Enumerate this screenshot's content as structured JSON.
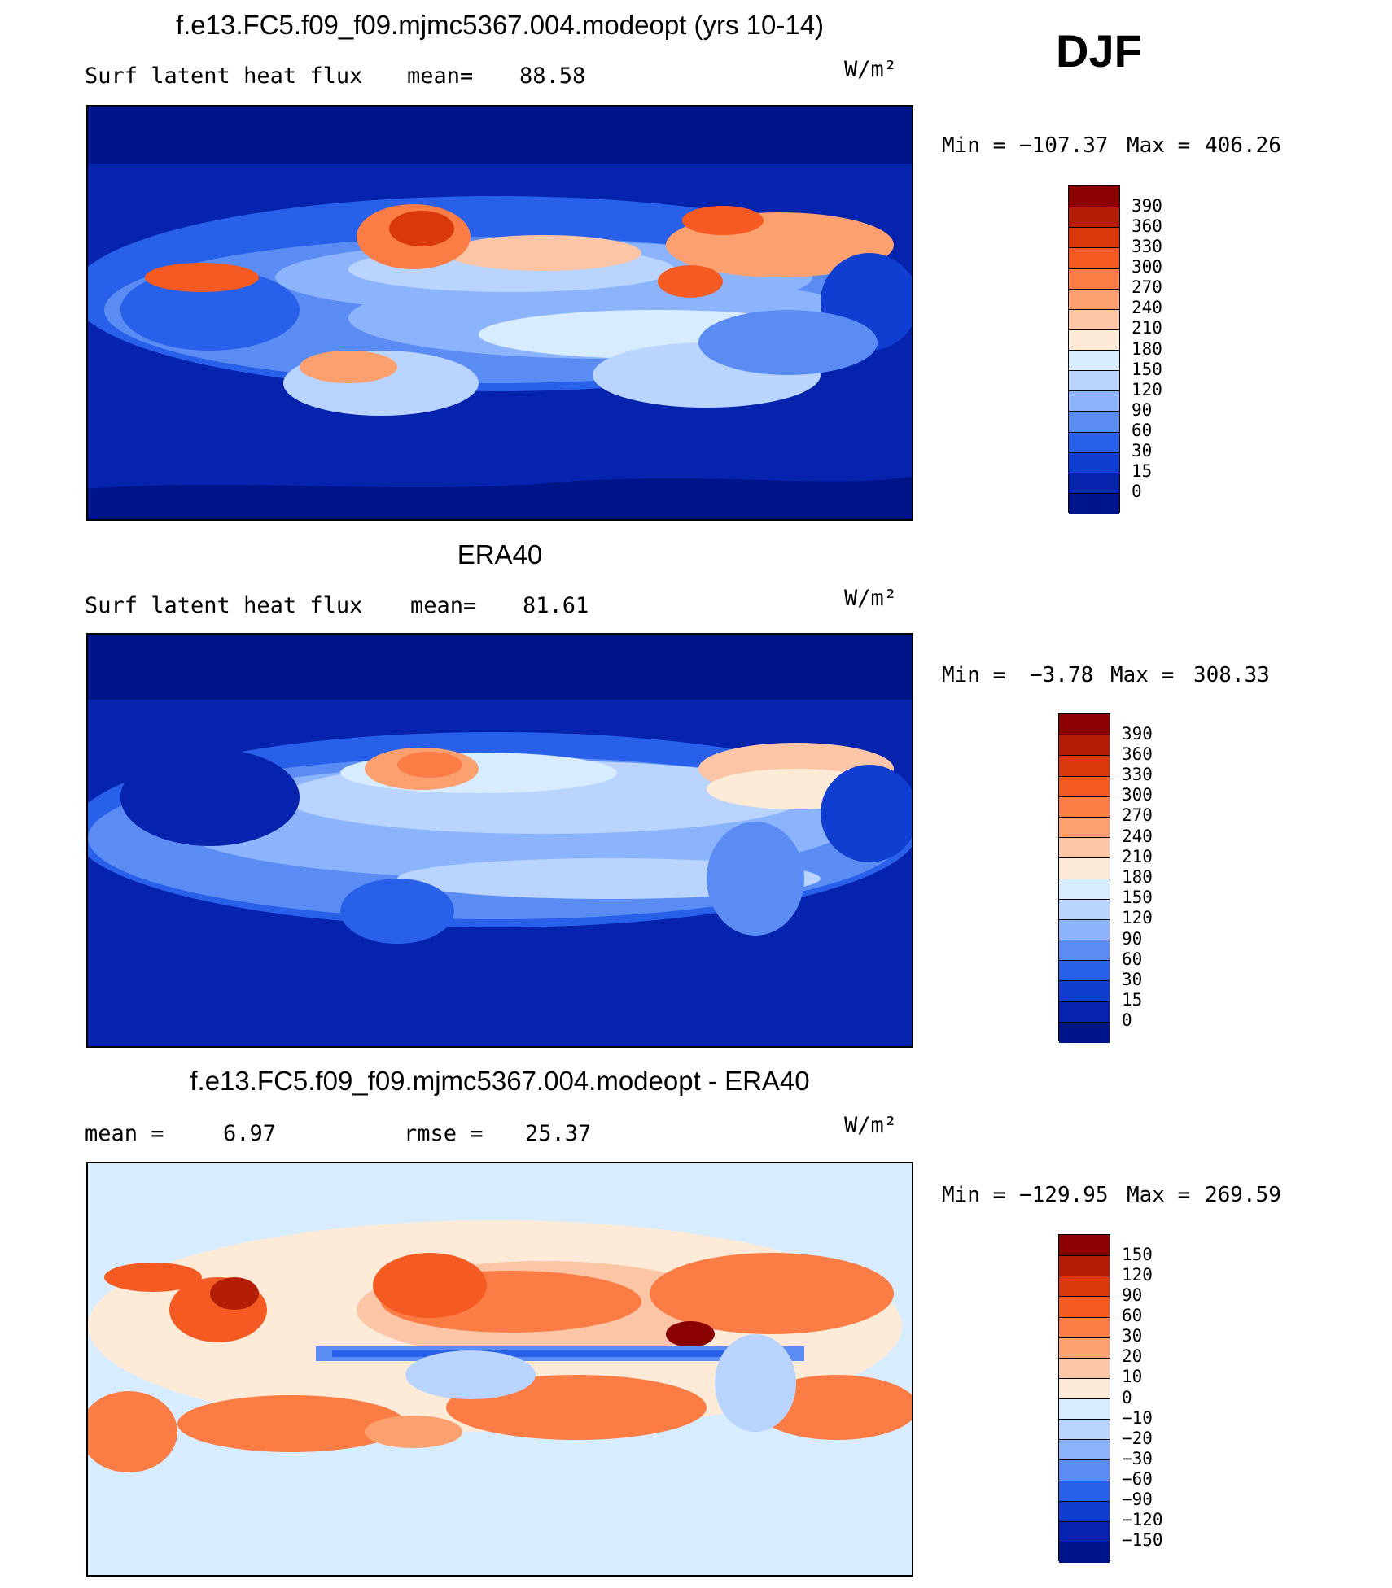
{
  "season": "DJF",
  "chart_data": [
    {
      "type": "heatmap",
      "title": "f.e13.FC5.f09_f09.mjmc5367.004.modeopt (yrs 10-14)",
      "left_label": "Surf latent heat flux",
      "stat_label": "mean=",
      "stat_value": "88.58",
      "units": "W/m²",
      "min_label": "Min =",
      "min_value": "−107.37",
      "max_label": "Max =",
      "max_value": "406.26",
      "colorbar": {
        "levels": [
          "390",
          "360",
          "330",
          "300",
          "270",
          "240",
          "210",
          "180",
          "150",
          "120",
          "90",
          "60",
          "30",
          "15",
          "0"
        ],
        "colors": [
          "#8b0000",
          "#b41e06",
          "#d8380c",
          "#f45a22",
          "#fb7c45",
          "#fca06f",
          "#fcc5a6",
          "#fdebd8",
          "#d8ecff",
          "#b9d4ff",
          "#8cb4fc",
          "#5a8cf4",
          "#2860ea",
          "#0f3ed0",
          "#0523ac",
          "#001489"
        ]
      }
    },
    {
      "type": "heatmap",
      "title": "ERA40",
      "left_label": "Surf latent heat flux",
      "stat_label": "mean=",
      "stat_value": "81.61",
      "units": "W/m²",
      "min_label": "Min =",
      "min_value": "−3.78",
      "max_label": "Max =",
      "max_value": "308.33",
      "colorbar": {
        "levels": [
          "390",
          "360",
          "330",
          "300",
          "270",
          "240",
          "210",
          "180",
          "150",
          "120",
          "90",
          "60",
          "30",
          "15",
          "0"
        ],
        "colors": [
          "#8b0000",
          "#b41e06",
          "#d8380c",
          "#f45a22",
          "#fb7c45",
          "#fca06f",
          "#fcc5a6",
          "#fdebd8",
          "#d8ecff",
          "#b9d4ff",
          "#8cb4fc",
          "#5a8cf4",
          "#2860ea",
          "#0f3ed0",
          "#0523ac",
          "#001489"
        ]
      }
    },
    {
      "type": "heatmap",
      "title": "f.e13.FC5.f09_f09.mjmc5367.004.modeopt - ERA40",
      "left_label": "mean =",
      "left_value": "6.97",
      "stat_label": "rmse =",
      "stat_value": "25.37",
      "units": "W/m²",
      "min_label": "Min =",
      "min_value": "−129.95",
      "max_label": "Max =",
      "max_value": "269.59",
      "colorbar": {
        "levels": [
          "150",
          "120",
          "90",
          "60",
          "30",
          "20",
          "10",
          "0",
          "−10",
          "−20",
          "−30",
          "−60",
          "−90",
          "−120",
          "−150"
        ],
        "colors": [
          "#8b0000",
          "#b41e06",
          "#d8380c",
          "#f45a22",
          "#fb7c45",
          "#fca06f",
          "#fcc5a6",
          "#fdebd8",
          "#d8ecff",
          "#b9d4ff",
          "#8cb4fc",
          "#5a8cf4",
          "#2860ea",
          "#0f3ed0",
          "#0523ac",
          "#001489"
        ]
      }
    }
  ]
}
